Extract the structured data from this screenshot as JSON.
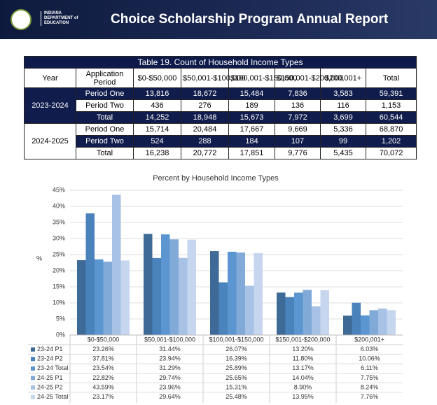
{
  "header": {
    "org": [
      "INDIANA",
      "DEPARTMENT of",
      "EDUCATION"
    ],
    "title": "Choice Scholarship Program Annual Report"
  },
  "table": {
    "title": "Table 19. Count of Household Income Types",
    "columns": [
      "Year",
      "Application Period",
      "$0-$50,000",
      "$50,001-$100,000",
      "$100,001-$150,000",
      "$150,001-$200,000",
      "$200,001+",
      "Total"
    ],
    "groups": [
      {
        "year": "2023-2024",
        "rows": [
          [
            "Period One",
            "13,816",
            "18,672",
            "15,484",
            "7,836",
            "3,583",
            "59,391"
          ],
          [
            "Period Two",
            "436",
            "276",
            "189",
            "136",
            "116",
            "1,153"
          ],
          [
            "Total",
            "14,252",
            "18,948",
            "15,673",
            "7,972",
            "3,699",
            "60,544"
          ]
        ]
      },
      {
        "year": "2024-2025",
        "rows": [
          [
            "Period One",
            "15,714",
            "20,484",
            "17,667",
            "9,669",
            "5,336",
            "68,870"
          ],
          [
            "Period Two",
            "524",
            "288",
            "184",
            "107",
            "99",
            "1,202"
          ],
          [
            "Total",
            "16,238",
            "20,772",
            "17,851",
            "9,776",
            "5,435",
            "70,072"
          ]
        ]
      }
    ]
  },
  "chart": {
    "type": "bar",
    "title": "Percent by Household Income Types",
    "y_label": "%",
    "categories": [
      "$0-$50,000",
      "$50,001-$100,000",
      "$100,001-$150,000",
      "$150,001-$200,000",
      "$200,001+"
    ],
    "ylim": [
      0,
      45
    ],
    "yticks": [
      {
        "value": 0,
        "label": "0%"
      },
      {
        "value": 5,
        "label": "5%"
      },
      {
        "value": 10,
        "label": "10%"
      },
      {
        "value": 15,
        "label": "15%"
      },
      {
        "value": 20,
        "label": "20%"
      },
      {
        "value": 25,
        "label": "25%"
      },
      {
        "value": 30,
        "label": "30%"
      },
      {
        "value": 35,
        "label": "35%"
      },
      {
        "value": 40,
        "label": "40%"
      },
      {
        "value": 45,
        "label": "45%"
      }
    ],
    "series": [
      {
        "name": "23-24 P1",
        "color": "#3d6a96",
        "values": [
          23.26,
          31.44,
          26.07,
          13.2,
          6.03
        ],
        "value_labels": [
          "23.26%",
          "31.44%",
          "26.07%",
          "13.20%",
          "6.03%"
        ]
      },
      {
        "name": "23-24 P2",
        "color": "#4a82bb",
        "values": [
          37.81,
          23.94,
          16.39,
          11.8,
          10.06
        ],
        "value_labels": [
          "37.81%",
          "23.94%",
          "16.39%",
          "11.80%",
          "10.06%"
        ]
      },
      {
        "name": "23-24 Total",
        "color": "#5b96d0",
        "values": [
          23.54,
          31.29,
          25.89,
          13.17,
          6.11
        ],
        "value_labels": [
          "23.54%",
          "31.29%",
          "25.89%",
          "13.17%",
          "6.11%"
        ]
      },
      {
        "name": "24-25 P1",
        "color": "#82aad8",
        "values": [
          22.82,
          29.74,
          25.65,
          14.04,
          7.75
        ],
        "value_labels": [
          "22.82%",
          "29.74%",
          "25.65%",
          "14.04%",
          "7.75%"
        ]
      },
      {
        "name": "24-25 P2",
        "color": "#a8c2e5",
        "values": [
          43.59,
          23.96,
          15.31,
          8.9,
          8.24
        ],
        "value_labels": [
          "43.59%",
          "23.96%",
          "15.31%",
          "8.90%",
          "8.24%"
        ]
      },
      {
        "name": "24-25 Total",
        "color": "#c6d6ee",
        "values": [
          23.17,
          29.64,
          25.48,
          13.95,
          7.76
        ],
        "value_labels": [
          "23.17%",
          "29.64%",
          "25.48%",
          "13.95%",
          "7.76%"
        ]
      }
    ]
  }
}
